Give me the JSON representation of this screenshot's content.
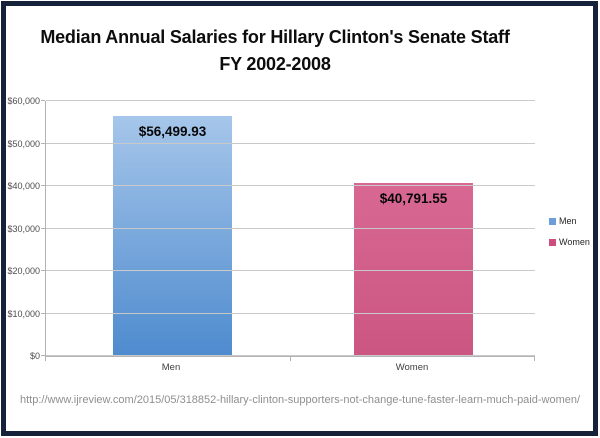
{
  "frame": {
    "border_color": "#16213a"
  },
  "title": {
    "line1": "Median Annual Salaries for Hillary Clinton's Senate Staff",
    "line2": "FY 2002-2008"
  },
  "chart_data": {
    "type": "bar",
    "title": "Median Annual Salaries for Hillary Clinton's Senate Staff FY 2002-2008",
    "categories": [
      "Men",
      "Women"
    ],
    "values": [
      56499.93,
      40791.55
    ],
    "value_labels": [
      "$56,499.93",
      "$40,791.55"
    ],
    "xlabel": "",
    "ylabel": "",
    "ylim": [
      0,
      60000
    ],
    "ytick_interval": 10000,
    "ytick_labels": [
      "$0",
      "$10,000",
      "$20,000",
      "$30,000",
      "$40,000",
      "$50,000",
      "$60,000"
    ],
    "grid": true,
    "bar_gradients": [
      [
        "#a6c6ea",
        "#4e8bce"
      ],
      [
        "#d86893",
        "#cb5681"
      ]
    ],
    "legend": {
      "position": "right",
      "entries": [
        {
          "label": "Men",
          "color": "#6d9eda"
        },
        {
          "label": "Women",
          "color": "#cf4d7e"
        }
      ]
    }
  },
  "footer": {
    "url": "http://www.ijreview.com/2015/05/318852-hillary-clinton-supporters-not-change-tune-faster-learn-much-paid-women/"
  }
}
